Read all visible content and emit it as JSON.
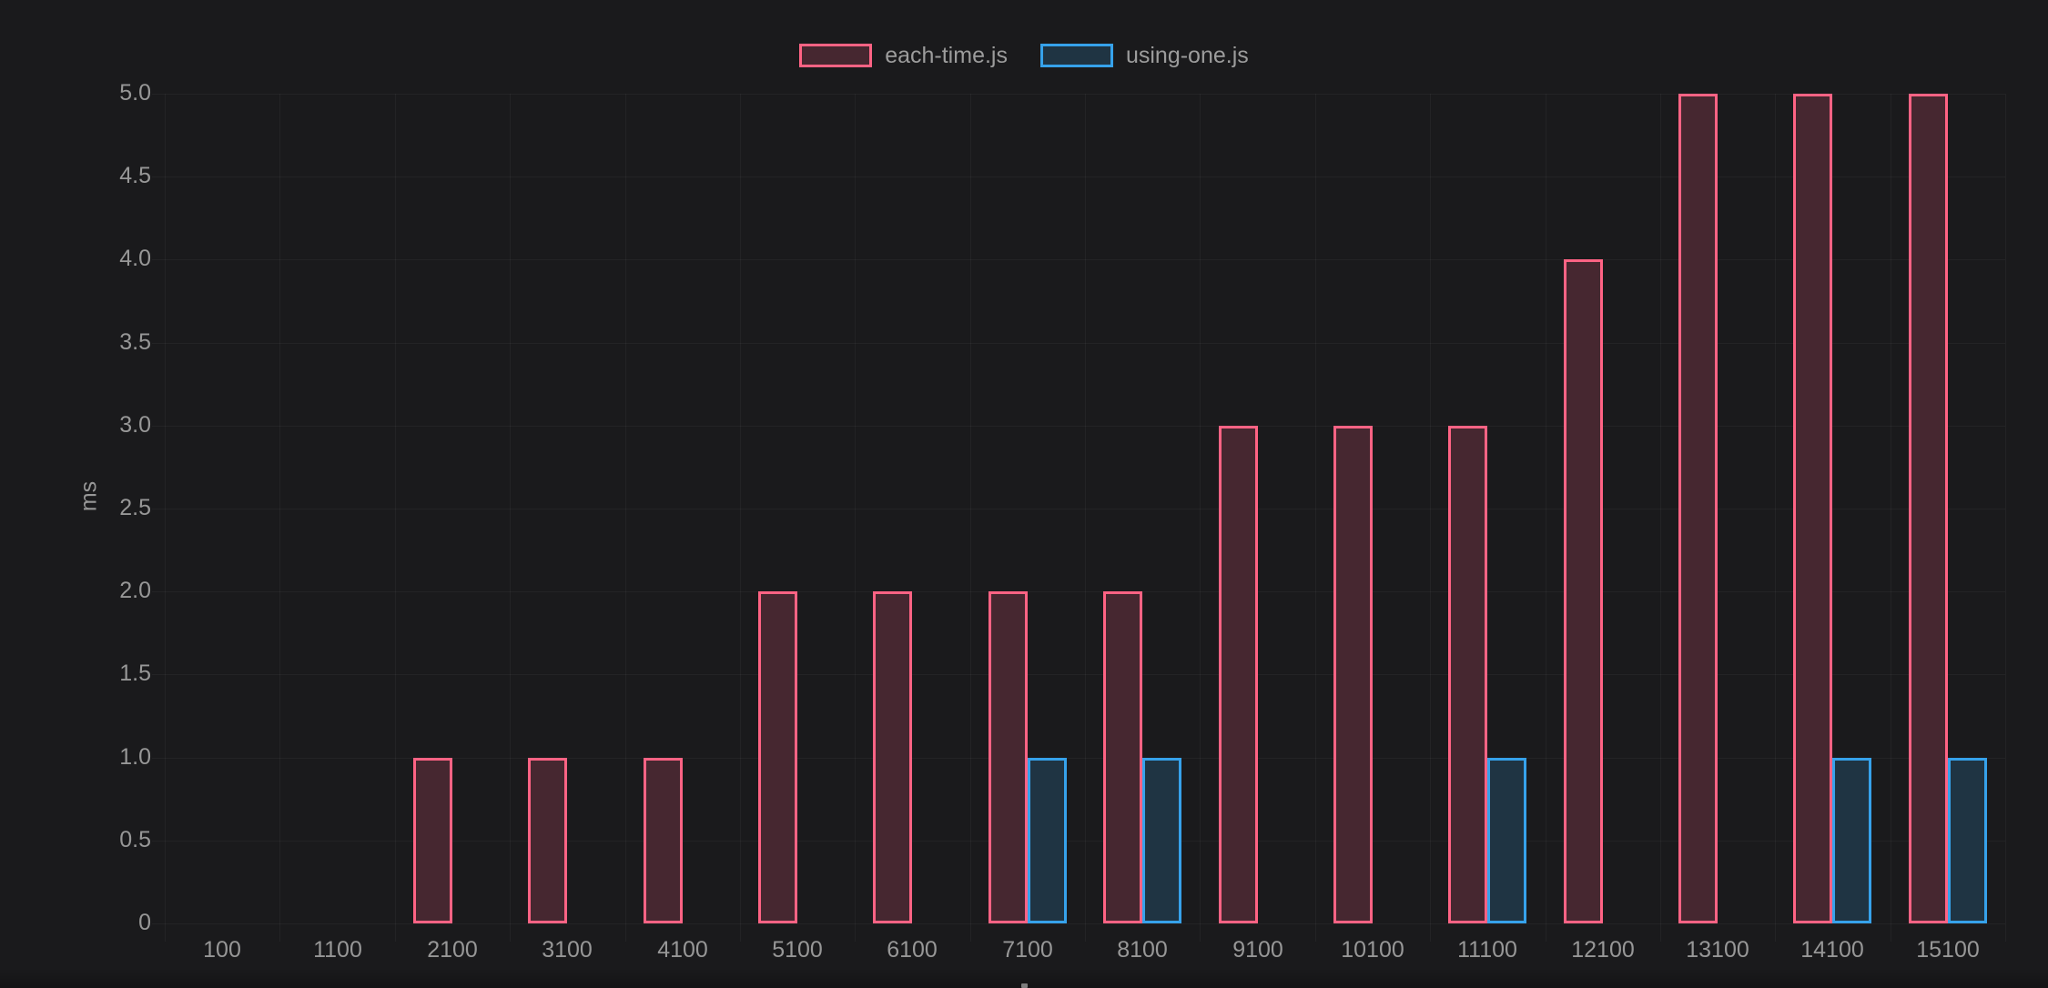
{
  "chart_data": {
    "type": "bar",
    "title": "",
    "xlabel": "",
    "ylabel": "ms",
    "ylim": [
      0,
      5
    ],
    "ytick_step": 0.5,
    "grid": true,
    "legend_position": "top",
    "categories": [
      "100",
      "1100",
      "2100",
      "3100",
      "4100",
      "5100",
      "6100",
      "7100",
      "8100",
      "9100",
      "10100",
      "11100",
      "12100",
      "13100",
      "14100",
      "15100"
    ],
    "yticks": [
      "5.0",
      "4.5",
      "4.0",
      "3.5",
      "3.0",
      "2.5",
      "2.0",
      "1.5",
      "1.0",
      "0.5",
      "0"
    ],
    "series": [
      {
        "name": "each-time.js",
        "values": [
          0,
          0,
          1,
          1,
          1,
          2,
          2,
          2,
          2,
          3,
          3,
          3,
          4,
          5,
          5,
          5
        ],
        "border_color": "#ff6384",
        "fill_color": "#462730"
      },
      {
        "name": "using-one.js",
        "values": [
          0,
          0,
          0,
          0,
          0,
          0,
          0,
          1,
          1,
          0,
          0,
          1,
          0,
          0,
          1,
          1
        ],
        "border_color": "#36a2eb",
        "fill_color": "#1f3443"
      }
    ]
  },
  "colors": {
    "background": "#1a1a1c",
    "grid": "rgba(255,255,255,0.045)",
    "tick_text": "#979797",
    "legend_text": "#9c9c9c"
  }
}
